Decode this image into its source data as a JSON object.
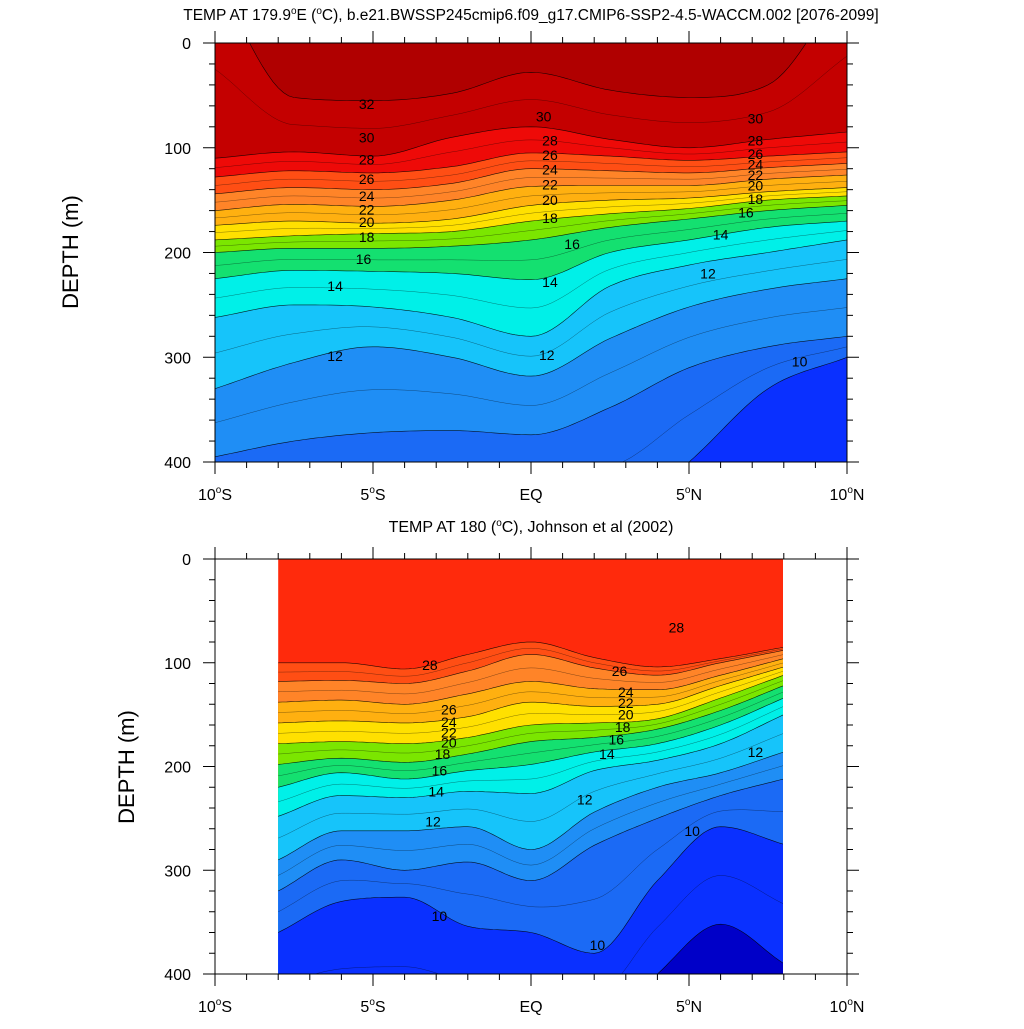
{
  "chart_data": [
    {
      "type": "contour",
      "title": "TEMP AT 179.9°E (°C), b.e21.BWSSP245cmip6.f09_g17.CMIP6-SSP2-4.5-WACCM.002 [2076-2099]",
      "title_parts": [
        "TEMP AT 179.9",
        "°",
        "E (",
        "o",
        "C), b.e21.BWSSP245cmip6.f09_g17.CMIP6-SSP2-4.5-WACCM.002 [2076-2099]"
      ],
      "ylabel": "DEPTH (m)",
      "xlim": [
        -10,
        10
      ],
      "ylim": [
        0,
        400
      ],
      "y_reversed": true,
      "x_ticks": [
        {
          "value": -10,
          "label": "10°S"
        },
        {
          "value": -5,
          "label": "5°S"
        },
        {
          "value": 0,
          "label": "EQ"
        },
        {
          "value": 5,
          "label": "5°N"
        },
        {
          "value": 10,
          "label": "10°N"
        }
      ],
      "y_ticks": [
        0,
        100,
        200,
        300,
        400
      ],
      "contour_levels_c": [
        10,
        11,
        12,
        13,
        14,
        15,
        16,
        17,
        18,
        19,
        20,
        21,
        22,
        23,
        24,
        25,
        26,
        27,
        28,
        29,
        30,
        31,
        32
      ],
      "data_extent_x": [
        -10,
        10
      ],
      "isotherm_depths_m": {
        "x": [
          -10,
          -7.5,
          -5,
          -2.5,
          0,
          2.5,
          5,
          7.5,
          10
        ],
        "t32": [
          null,
          52,
          55,
          48,
          28,
          45,
          52,
          40,
          null
        ],
        "t30": [
          110,
          104,
          108,
          90,
          80,
          92,
          100,
          92,
          85
        ],
        "t28": [
          128,
          122,
          124,
          118,
          105,
          108,
          112,
          108,
          104
        ],
        "t26": [
          144,
          138,
          140,
          134,
          120,
          122,
          124,
          119,
          115
        ],
        "t24": [
          160,
          154,
          156,
          150,
          137,
          136,
          136,
          130,
          126
        ],
        "t22": [
          174,
          170,
          172,
          168,
          155,
          150,
          148,
          142,
          138
        ],
        "t20": [
          188,
          184,
          182,
          180,
          170,
          163,
          158,
          150,
          146
        ],
        "t18": [
          200,
          196,
          196,
          194,
          188,
          176,
          168,
          160,
          155
        ],
        "t16": [
          225,
          217,
          218,
          220,
          226,
          200,
          188,
          176,
          170
        ],
        "t14": [
          262,
          250,
          252,
          262,
          280,
          232,
          212,
          200,
          188
        ],
        "t12": [
          330,
          305,
          290,
          300,
          318,
          282,
          252,
          235,
          225
        ],
        "t11": [
          395,
          380,
          372,
          370,
          374,
          348,
          310,
          290,
          280
        ],
        "t10": [
          null,
          null,
          null,
          null,
          null,
          null,
          400,
          330,
          300
        ]
      },
      "labels": [
        {
          "text": "32",
          "x": -5.2,
          "y": 58
        },
        {
          "text": "30",
          "x": -5.2,
          "y": 90
        },
        {
          "text": "28",
          "x": -5.2,
          "y": 111
        },
        {
          "text": "26",
          "x": -5.2,
          "y": 130
        },
        {
          "text": "24",
          "x": -5.2,
          "y": 146
        },
        {
          "text": "22",
          "x": -5.2,
          "y": 159
        },
        {
          "text": "20",
          "x": -5.2,
          "y": 171
        },
        {
          "text": "18",
          "x": -5.2,
          "y": 185
        },
        {
          "text": "16",
          "x": -5.3,
          "y": 206
        },
        {
          "text": "14",
          "x": -6.2,
          "y": 232
        },
        {
          "text": "12",
          "x": -6.2,
          "y": 299
        },
        {
          "text": "30",
          "x": 0.4,
          "y": 70
        },
        {
          "text": "28",
          "x": 0.6,
          "y": 93
        },
        {
          "text": "26",
          "x": 0.6,
          "y": 107
        },
        {
          "text": "24",
          "x": 0.6,
          "y": 121
        },
        {
          "text": "22",
          "x": 0.6,
          "y": 135
        },
        {
          "text": "20",
          "x": 0.6,
          "y": 150
        },
        {
          "text": "18",
          "x": 0.6,
          "y": 167
        },
        {
          "text": "16",
          "x": 1.3,
          "y": 192
        },
        {
          "text": "14",
          "x": 0.6,
          "y": 228
        },
        {
          "text": "12",
          "x": 0.5,
          "y": 298
        },
        {
          "text": "30",
          "x": 7.1,
          "y": 72
        },
        {
          "text": "28",
          "x": 7.1,
          "y": 93
        },
        {
          "text": "26",
          "x": 7.1,
          "y": 106
        },
        {
          "text": "24",
          "x": 7.1,
          "y": 116
        },
        {
          "text": "22",
          "x": 7.1,
          "y": 126
        },
        {
          "text": "20",
          "x": 7.1,
          "y": 136
        },
        {
          "text": "18",
          "x": 7.1,
          "y": 149
        },
        {
          "text": "16",
          "x": 6.8,
          "y": 162
        },
        {
          "text": "14",
          "x": 6.0,
          "y": 183
        },
        {
          "text": "12",
          "x": 5.6,
          "y": 220
        },
        {
          "text": "10",
          "x": 8.5,
          "y": 304
        }
      ]
    },
    {
      "type": "contour",
      "title": "TEMP AT 180 (°C), Johnson et al (2002)",
      "title_parts": [
        "TEMP AT 180 (",
        "o",
        "C), Johnson et al (2002)"
      ],
      "ylabel": "DEPTH (m)",
      "xlim": [
        -10,
        10
      ],
      "ylim": [
        0,
        400
      ],
      "y_reversed": true,
      "x_ticks": [
        {
          "value": -10,
          "label": "10°S"
        },
        {
          "value": -5,
          "label": "5°S"
        },
        {
          "value": 0,
          "label": "EQ"
        },
        {
          "value": 5,
          "label": "5°N"
        },
        {
          "value": 10,
          "label": "10°N"
        }
      ],
      "y_ticks": [
        0,
        100,
        200,
        300,
        400
      ],
      "contour_levels_c": [
        9,
        10,
        11,
        12,
        13,
        14,
        15,
        16,
        17,
        18,
        19,
        20,
        21,
        22,
        23,
        24,
        25,
        26,
        27,
        28,
        29
      ],
      "data_extent_x": [
        -8,
        8
      ],
      "isotherm_depths_m": {
        "x": [
          -8,
          -6,
          -4,
          -2,
          0,
          2,
          4,
          6,
          8
        ],
        "t28": [
          100,
          100,
          106,
          92,
          80,
          95,
          104,
          96,
          85
        ],
        "t26": [
          118,
          117,
          120,
          108,
          92,
          105,
          112,
          100,
          88
        ],
        "t24": [
          138,
          136,
          140,
          130,
          118,
          125,
          126,
          112,
          96
        ],
        "t22": [
          158,
          156,
          158,
          152,
          138,
          142,
          140,
          122,
          104
        ],
        "t20": [
          178,
          176,
          178,
          172,
          160,
          158,
          154,
          134,
          112
        ],
        "t18": [
          198,
          192,
          196,
          188,
          176,
          172,
          164,
          146,
          122
        ],
        "t16": [
          220,
          206,
          212,
          204,
          198,
          186,
          178,
          160,
          134
        ],
        "t14": [
          248,
          228,
          230,
          224,
          226,
          204,
          194,
          178,
          150
        ],
        "t12": [
          290,
          262,
          262,
          258,
          280,
          244,
          220,
          206,
          186
        ],
        "t11": [
          320,
          290,
          300,
          292,
          310,
          276,
          250,
          228,
          212
        ],
        "t10": [
          360,
          330,
          326,
          354,
          360,
          380,
          310,
          258,
          275
        ],
        "t9": [
          null,
          null,
          null,
          null,
          null,
          null,
          400,
          352,
          390
        ]
      },
      "labels": [
        {
          "text": "28",
          "x": -3.2,
          "y": 102
        },
        {
          "text": "26",
          "x": -2.6,
          "y": 145
        },
        {
          "text": "24",
          "x": -2.6,
          "y": 157
        },
        {
          "text": "22",
          "x": -2.6,
          "y": 167
        },
        {
          "text": "20",
          "x": -2.6,
          "y": 177
        },
        {
          "text": "18",
          "x": -2.8,
          "y": 188
        },
        {
          "text": "16",
          "x": -2.9,
          "y": 204
        },
        {
          "text": "14",
          "x": -3.0,
          "y": 224
        },
        {
          "text": "12",
          "x": -3.1,
          "y": 253
        },
        {
          "text": "10",
          "x": -2.9,
          "y": 344
        },
        {
          "text": "28",
          "x": 4.6,
          "y": 66
        },
        {
          "text": "26",
          "x": 2.8,
          "y": 108
        },
        {
          "text": "24",
          "x": 3.0,
          "y": 128
        },
        {
          "text": "22",
          "x": 3.0,
          "y": 139
        },
        {
          "text": "20",
          "x": 3.0,
          "y": 150
        },
        {
          "text": "18",
          "x": 2.9,
          "y": 162
        },
        {
          "text": "16",
          "x": 2.7,
          "y": 174
        },
        {
          "text": "14",
          "x": 2.4,
          "y": 188
        },
        {
          "text": "12",
          "x": 1.7,
          "y": 232
        },
        {
          "text": "10",
          "x": 5.1,
          "y": 262
        },
        {
          "text": "10",
          "x": 2.1,
          "y": 372
        },
        {
          "text": "12",
          "x": 7.1,
          "y": 186
        }
      ]
    }
  ]
}
